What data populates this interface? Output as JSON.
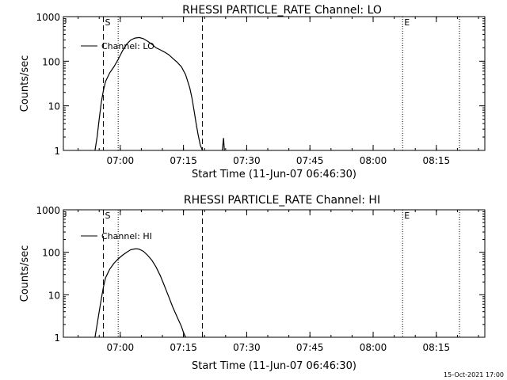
{
  "chart_data": [
    {
      "type": "line",
      "title": "RHESSI PARTICLE_RATE Channel: LO",
      "xlabel": "Start Time (11-Jun-07 06:46:30)",
      "ylabel": "Counts/sec",
      "x_unit": "minutes after 06:46:30",
      "xlim": [
        0,
        100
      ],
      "ylim": [
        1,
        1000
      ],
      "yscale": "log",
      "x_ticks": [
        {
          "value": 13.5,
          "label": "07:00"
        },
        {
          "value": 28.5,
          "label": "07:15"
        },
        {
          "value": 43.5,
          "label": "07:30"
        },
        {
          "value": 58.5,
          "label": "07:45"
        },
        {
          "value": 73.5,
          "label": "08:00"
        },
        {
          "value": 88.5,
          "label": "08:15"
        }
      ],
      "y_ticks": [
        {
          "value": 1,
          "label": "1"
        },
        {
          "value": 10,
          "label": "10"
        },
        {
          "value": 100,
          "label": "100"
        },
        {
          "value": 1000,
          "label": "1000"
        }
      ],
      "legend": {
        "label": "Channel: LO",
        "position": "top-left"
      },
      "markers": [
        {
          "label": "S",
          "x": 9.5,
          "style": "dashed"
        },
        {
          "label": "",
          "x": 33,
          "style": "dashed"
        },
        {
          "label": "",
          "x": 13,
          "style": "dotted"
        },
        {
          "label": "E",
          "x": 80.5,
          "style": "dotted"
        },
        {
          "label": "",
          "x": 94,
          "style": "dotted"
        }
      ],
      "series": [
        {
          "name": "Channel: LO",
          "x": [
            7.5,
            8,
            8.5,
            9,
            9.5,
            10,
            11,
            12,
            13,
            14,
            15,
            16,
            17,
            18,
            19,
            20,
            21,
            22,
            23,
            24,
            25,
            26,
            27,
            28,
            29,
            30,
            30.5,
            31,
            31.5,
            32,
            32.5,
            33
          ],
          "y": [
            1,
            2,
            5,
            12,
            22,
            35,
            55,
            75,
            110,
            170,
            240,
            300,
            330,
            340,
            320,
            280,
            240,
            200,
            180,
            160,
            140,
            115,
            95,
            75,
            50,
            25,
            15,
            8,
            4,
            2.2,
            1.3,
            1
          ]
        },
        {
          "name": "spike",
          "x": [
            37.7,
            38,
            38.2
          ],
          "y": [
            1,
            1.9,
            1
          ]
        }
      ]
    },
    {
      "type": "line",
      "title": "RHESSI PARTICLE_RATE Channel: HI",
      "xlabel": "Start Time (11-Jun-07 06:46:30)",
      "ylabel": "Counts/sec",
      "x_unit": "minutes after 06:46:30",
      "xlim": [
        0,
        100
      ],
      "ylim": [
        1,
        1000
      ],
      "yscale": "log",
      "x_ticks": [
        {
          "value": 13.5,
          "label": "07:00"
        },
        {
          "value": 28.5,
          "label": "07:15"
        },
        {
          "value": 43.5,
          "label": "07:30"
        },
        {
          "value": 58.5,
          "label": "07:45"
        },
        {
          "value": 73.5,
          "label": "08:00"
        },
        {
          "value": 88.5,
          "label": "08:15"
        }
      ],
      "y_ticks": [
        {
          "value": 1,
          "label": "1"
        },
        {
          "value": 10,
          "label": "10"
        },
        {
          "value": 100,
          "label": "100"
        },
        {
          "value": 1000,
          "label": "1000"
        }
      ],
      "legend": {
        "label": "Channel: HI",
        "position": "top-left"
      },
      "markers": [
        {
          "label": "S",
          "x": 9.5,
          "style": "dashed"
        },
        {
          "label": "",
          "x": 33,
          "style": "dashed"
        },
        {
          "label": "",
          "x": 13,
          "style": "dotted"
        },
        {
          "label": "E",
          "x": 80.5,
          "style": "dotted"
        },
        {
          "label": "",
          "x": 94,
          "style": "dotted"
        }
      ],
      "series": [
        {
          "name": "Channel: HI",
          "x": [
            7.5,
            8,
            8.5,
            9,
            9.5,
            10,
            11,
            12,
            13,
            14,
            15,
            16,
            17,
            17.5,
            18,
            19,
            20,
            21,
            22,
            23,
            24,
            25,
            26,
            27,
            28,
            28.5,
            29
          ],
          "y": [
            1,
            2,
            4,
            8,
            15,
            25,
            40,
            55,
            70,
            85,
            100,
            115,
            120,
            120,
            118,
            105,
            85,
            65,
            45,
            28,
            16,
            9,
            5,
            3,
            1.8,
            1.3,
            1
          ]
        }
      ]
    }
  ],
  "footer": {
    "timestamp": "15-Oct-2021 17:00"
  }
}
